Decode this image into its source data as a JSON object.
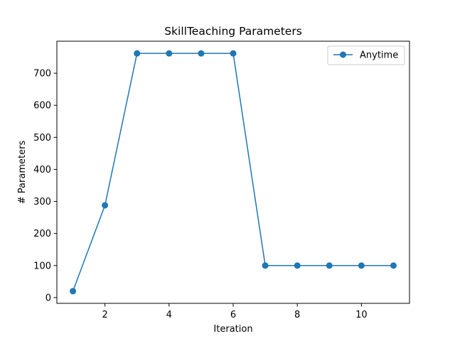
{
  "chart_data": {
    "type": "line",
    "title": "SkillTeaching Parameters",
    "xlabel": "Iteration",
    "ylabel": "# Parameters",
    "x": [
      1,
      2,
      3,
      4,
      5,
      6,
      7,
      8,
      9,
      10,
      11
    ],
    "series": [
      {
        "name": "Anytime",
        "color": "#1f77b4",
        "marker": "circle",
        "values": [
          20,
          288,
          762,
          762,
          762,
          762,
          100,
          100,
          100,
          100,
          100
        ]
      }
    ],
    "xlim": [
      0.5,
      11.5
    ],
    "ylim": [
      -18,
      800
    ],
    "xticks": [
      2,
      4,
      6,
      8,
      10
    ],
    "yticks": [
      0,
      100,
      200,
      300,
      400,
      500,
      600,
      700
    ],
    "grid": false,
    "legend_position": "top-right"
  }
}
